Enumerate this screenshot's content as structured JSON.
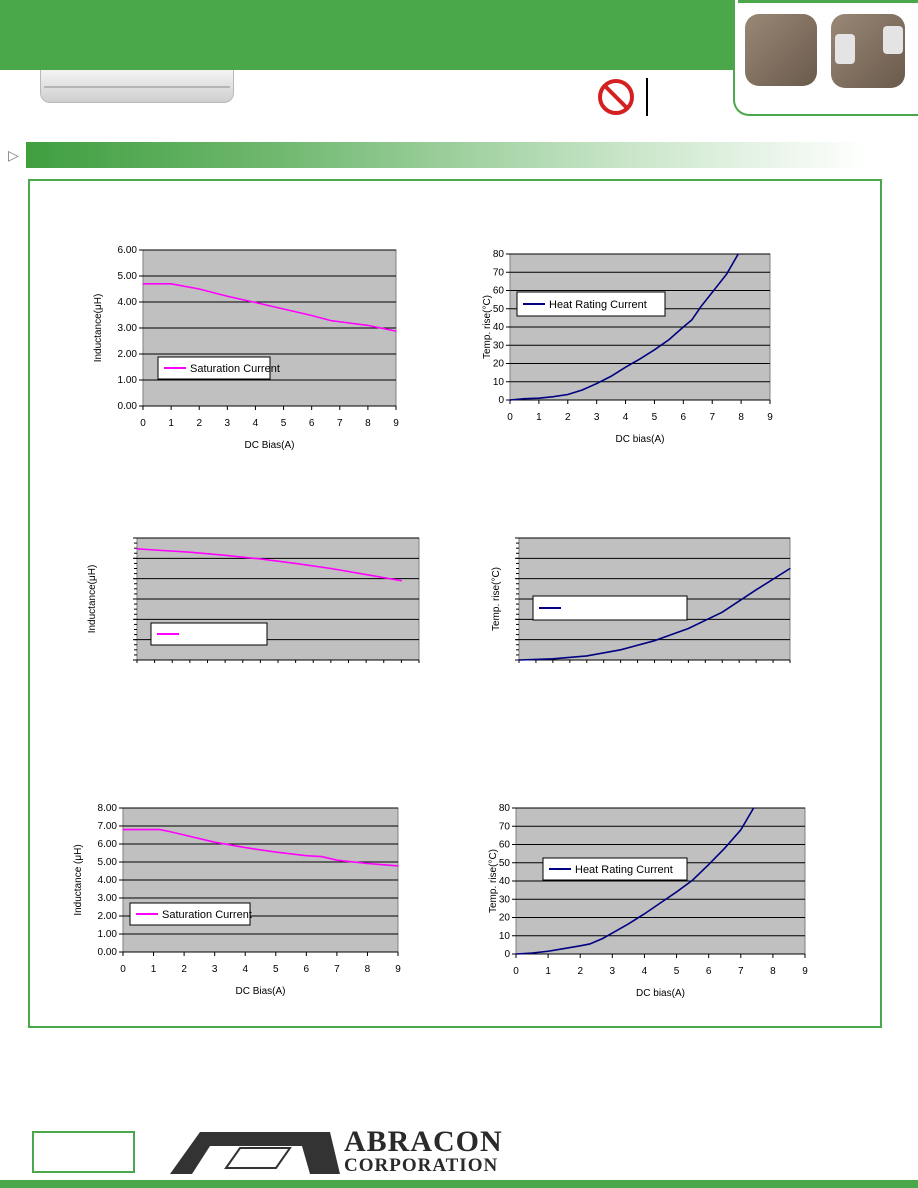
{
  "brand": {
    "name_line1": "ABRACON",
    "name_line2": "CORPORATION",
    "accent_green": "#4aa84a",
    "magenta": "#ff00ff",
    "navy": "#000080"
  },
  "header": {
    "product_image": "smd-power-inductor-photos",
    "no_lead_icon": "prohibited-icon"
  },
  "chart_data": [
    {
      "type": "line",
      "x": [
        0,
        1,
        2,
        3,
        4,
        5,
        6,
        6.7,
        7,
        8,
        9
      ],
      "series": [
        {
          "name": "Saturation Current",
          "values": [
            4.7,
            4.7,
            4.5,
            4.22,
            3.98,
            3.73,
            3.48,
            3.28,
            3.24,
            3.1,
            2.88
          ]
        }
      ],
      "xlabel": "DC Bias(A)",
      "ylabel": "Inductance(μH)",
      "xlim": [
        0,
        9
      ],
      "ylim": [
        0,
        6
      ],
      "xticks": [
        "0",
        "1",
        "2",
        "3",
        "4",
        "5",
        "6",
        "7",
        "8",
        "9"
      ],
      "yticks": [
        "0.00",
        "1.00",
        "2.00",
        "3.00",
        "4.00",
        "5.00",
        "6.00"
      ],
      "grid": true,
      "legend": "bottom-left",
      "color": "#ff00ff"
    },
    {
      "type": "line",
      "x": [
        0,
        0.5,
        1,
        1.5,
        2,
        2.5,
        3,
        3.5,
        4,
        4.5,
        5,
        5.5,
        6,
        6.3,
        6.6,
        7,
        7.5,
        7.9
      ],
      "series": [
        {
          "name": "Heat Rating Current",
          "values": [
            0,
            0.7,
            1,
            1.8,
            3,
            5.5,
            9,
            13,
            18,
            22.5,
            27.5,
            33,
            40,
            44,
            51,
            59,
            69,
            80
          ]
        }
      ],
      "xlabel": "DC bias(A)",
      "ylabel": "Temp. rise(°C)",
      "xlim": [
        0,
        9
      ],
      "ylim": [
        0,
        80
      ],
      "xticks": [
        "0",
        "1",
        "2",
        "3",
        "4",
        "5",
        "6",
        "7",
        "8",
        "9"
      ],
      "yticks": [
        "0",
        "10",
        "20",
        "30",
        "40",
        "50",
        "60",
        "70",
        "80"
      ],
      "grid": true,
      "legend": "top-left",
      "color": "#000080"
    },
    {
      "type": "line",
      "x": [
        0,
        0.5,
        1.5,
        2.5,
        3.5,
        4.5,
        5.5,
        6.5,
        7.5
      ],
      "series": [
        {
          "name": "",
          "values": [
            5.47,
            5.41,
            5.3,
            5.15,
            4.97,
            4.75,
            4.5,
            4.2,
            3.9
          ]
        }
      ],
      "xlabel": "",
      "ylabel": "Inductance(μH)",
      "xlim": [
        0,
        8
      ],
      "ylim": [
        0,
        6
      ],
      "grid": true,
      "legend": "bottom-left",
      "color": "#ff00ff"
    },
    {
      "type": "line",
      "x": [
        0,
        1,
        2,
        3,
        4,
        5,
        6,
        7,
        8
      ],
      "series": [
        {
          "name": "",
          "values": [
            0,
            1.2,
            4,
            10,
            19,
            31,
            47,
            69,
            90
          ]
        }
      ],
      "xlabel": "",
      "ylabel": "Temp. rise(°C)",
      "xlim": [
        0,
        8
      ],
      "ylim": [
        0,
        120
      ],
      "grid": true,
      "legend": "top-left",
      "color": "#000080"
    },
    {
      "type": "line",
      "x": [
        0,
        1.2,
        1.5,
        2,
        3,
        4,
        5,
        6,
        6.5,
        7,
        8,
        9
      ],
      "series": [
        {
          "name": "Saturation Current",
          "values": [
            6.8,
            6.8,
            6.7,
            6.5,
            6.1,
            5.8,
            5.55,
            5.35,
            5.3,
            5.1,
            4.92,
            4.78
          ]
        }
      ],
      "xlabel": "DC Bias(A)",
      "ylabel": "Inductance (μH)",
      "xlim": [
        0,
        9
      ],
      "ylim": [
        0,
        8
      ],
      "xticks": [
        "0",
        "1",
        "2",
        "3",
        "4",
        "5",
        "6",
        "7",
        "8",
        "9"
      ],
      "yticks": [
        "0.00",
        "1.00",
        "2.00",
        "3.00",
        "4.00",
        "5.00",
        "6.00",
        "7.00",
        "8.00"
      ],
      "grid": true,
      "legend": "bottom-left",
      "color": "#ff00ff"
    },
    {
      "type": "line",
      "x": [
        0,
        0.5,
        1,
        1.5,
        2,
        2.3,
        2.7,
        3,
        3.5,
        4,
        4.5,
        5,
        5.5,
        6,
        6.5,
        7,
        7.4
      ],
      "series": [
        {
          "name": "Heat Rating Current",
          "values": [
            0,
            0.5,
            1.5,
            3,
            4.5,
            5.5,
            8.5,
            11.5,
            16.5,
            22,
            28,
            34,
            40.5,
            49,
            58,
            68,
            80
          ]
        }
      ],
      "xlabel": "DC bias(A)",
      "ylabel": "Temp. rise(°C)",
      "xlim": [
        0,
        9
      ],
      "ylim": [
        0,
        80
      ],
      "xticks": [
        "0",
        "1",
        "2",
        "3",
        "4",
        "5",
        "6",
        "7",
        "8",
        "9"
      ],
      "yticks": [
        "0",
        "10",
        "20",
        "30",
        "40",
        "50",
        "60",
        "70",
        "80"
      ],
      "grid": true,
      "legend": "top-left",
      "color": "#000080"
    }
  ]
}
